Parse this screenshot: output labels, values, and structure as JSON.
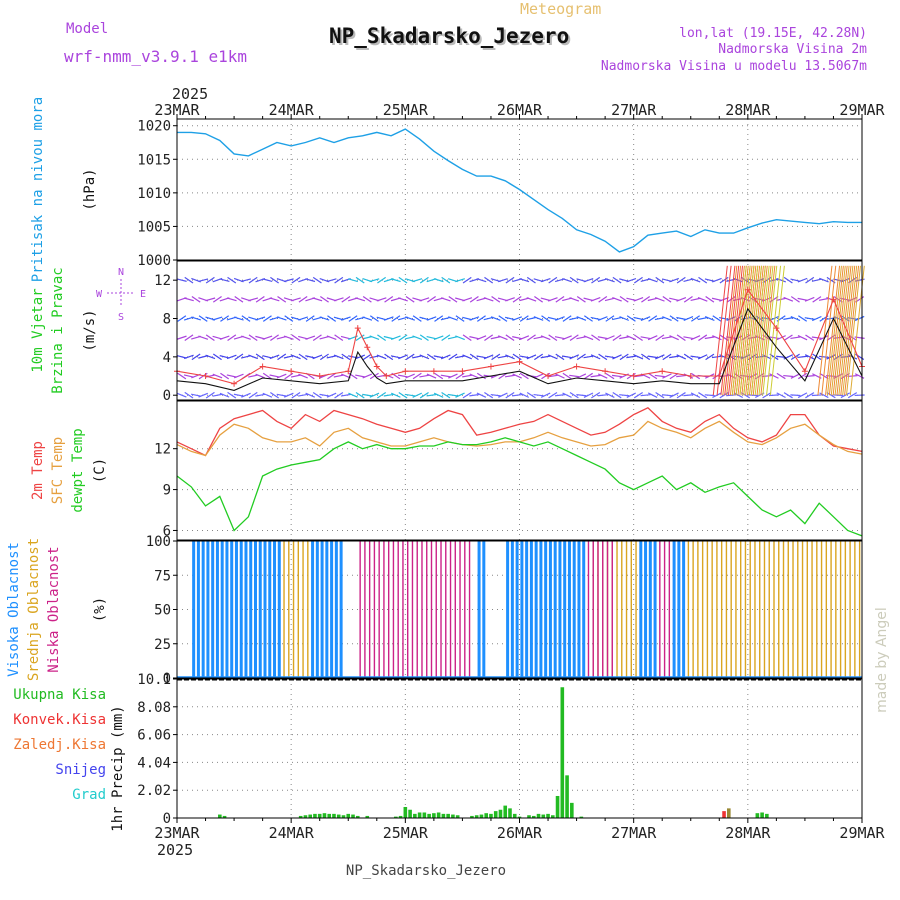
{
  "header": {
    "model_label": "Model",
    "model_name": "wrf-nmm_v3.9.1 e1km",
    "title": "NP_Skadarsko_Jezero",
    "subtitle": "Meteogram",
    "coords": "lon,lat (19.15E, 42.28N)",
    "elevation": "Nadmorska Visina 2m",
    "model_elevation": "Nadmorska Visina u modelu 13.5067m",
    "top_year": "2025",
    "bottom_year": "2025",
    "footer": "NP_Skadarsko_Jezero",
    "watermark": "made by Angel"
  },
  "colors": {
    "pressure": "#1ea0e6",
    "wind_label": "#22cc22",
    "temp2m": "#ee4444",
    "sfc": "#e6a040",
    "dew": "#22cc22",
    "cloud_high": "#1e90ff",
    "cloud_mid": "#daa520",
    "cloud_low": "#cc2288",
    "precip_total": "#22bb22",
    "precip_conv": "#ee3333",
    "precip_frz": "#ee7733",
    "snow": "#4444ee",
    "hail": "#22cccc",
    "purple": "#aa44dd"
  },
  "time_axis": {
    "labels": [
      "23MAR",
      "24MAR",
      "25MAR",
      "26MAR",
      "27MAR",
      "28MAR",
      "29MAR"
    ]
  },
  "chart_data": [
    {
      "type": "line",
      "id": "pressure",
      "ylabel": [
        "Pritisak na nivou mora",
        "(hPa)"
      ],
      "yticks": [
        1000,
        1005,
        1010,
        1015,
        1020
      ],
      "ylim": [
        1000,
        1021
      ],
      "x_unit": "hours since 23MAR 00",
      "series": [
        {
          "x": [
            0,
            3,
            6,
            9,
            12,
            15,
            18,
            21,
            24,
            27,
            30,
            33,
            36,
            39,
            42,
            45,
            48,
            51,
            54,
            57,
            60,
            63,
            66,
            69,
            72,
            75,
            78,
            81,
            84,
            87,
            90,
            93,
            96,
            99,
            102,
            105,
            108,
            111,
            114,
            117,
            120,
            123,
            126,
            129,
            132,
            135,
            138,
            141,
            144
          ],
          "values": [
            1019,
            1019,
            1018.8,
            1017.8,
            1015.8,
            1015.5,
            1016.5,
            1017.5,
            1017.0,
            1017.5,
            1018.2,
            1017.5,
            1018.2,
            1018.5,
            1019.0,
            1018.5,
            1019.5,
            1018.0,
            1016.2,
            1014.8,
            1013.5,
            1012.5,
            1012.5,
            1011.8,
            1010.5,
            1009.0,
            1007.5,
            1006.2,
            1004.5,
            1003.8,
            1002.8,
            1001.2,
            1002.0,
            1003.7,
            1004.0,
            1004.3,
            1003.5,
            1004.5,
            1004.0,
            1004.0,
            1004.8,
            1005.5,
            1006.0,
            1005.8,
            1005.6,
            1005.4,
            1005.7,
            1005.6,
            1005.6
          ]
        }
      ]
    },
    {
      "type": "line",
      "id": "wind",
      "ylabel": [
        "10m Vjetar",
        "Brzina i Pravac",
        "(m/s)"
      ],
      "compass": [
        "N",
        "E",
        "S",
        "W"
      ],
      "yticks": [
        0,
        4,
        8,
        12
      ],
      "ylim": [
        -0.5,
        14
      ],
      "x_unit": "hours since 23MAR 00",
      "series": [
        {
          "name": "10m wind speed",
          "x": [
            0,
            6,
            12,
            18,
            24,
            30,
            36,
            38,
            40,
            42,
            44,
            48,
            54,
            60,
            66,
            72,
            78,
            84,
            90,
            96,
            102,
            108,
            114,
            120,
            126,
            132,
            138,
            144
          ],
          "values": [
            1.5,
            1.2,
            0.5,
            1.8,
            1.5,
            1.2,
            1.5,
            4.5,
            3.0,
            1.8,
            1.2,
            1.5,
            1.5,
            1.5,
            2.0,
            2.5,
            1.2,
            1.8,
            1.5,
            1.2,
            1.5,
            1.2,
            1.2,
            9.0,
            5.0,
            1.5,
            8.0,
            2.0
          ]
        },
        {
          "name": "gust",
          "x": [
            0,
            6,
            12,
            18,
            24,
            30,
            36,
            38,
            40,
            42,
            44,
            48,
            54,
            60,
            66,
            72,
            78,
            84,
            90,
            96,
            102,
            108,
            114,
            120,
            126,
            132,
            138,
            144
          ],
          "values": [
            2.5,
            2.0,
            1.2,
            3.0,
            2.5,
            2.0,
            2.5,
            7.0,
            5.0,
            3.0,
            2.0,
            2.5,
            2.5,
            2.5,
            3.0,
            3.5,
            2.0,
            3.0,
            2.5,
            2.0,
            2.5,
            2.0,
            2.0,
            11.0,
            7.0,
            2.5,
            10.0,
            3.0
          ]
        }
      ]
    },
    {
      "type": "line",
      "id": "temperature",
      "ylabel": [
        "2m Temp",
        "SFC Temp",
        "dewpt Temp",
        "(C)"
      ],
      "yticks": [
        6,
        9,
        12
      ],
      "ylim": [
        5.3,
        15.5
      ],
      "x_unit": "hours since 23MAR 00",
      "series": [
        {
          "name": "2m Temp",
          "x": [
            0,
            3,
            6,
            9,
            12,
            15,
            18,
            21,
            24,
            27,
            30,
            33,
            36,
            39,
            42,
            45,
            48,
            51,
            54,
            57,
            60,
            63,
            66,
            69,
            72,
            75,
            78,
            81,
            84,
            87,
            90,
            93,
            96,
            99,
            102,
            105,
            108,
            111,
            114,
            117,
            120,
            123,
            126,
            129,
            132,
            135,
            138,
            141,
            144
          ],
          "values": [
            12.5,
            12.0,
            11.5,
            13.5,
            14.2,
            14.5,
            14.8,
            14.0,
            13.5,
            14.5,
            14.0,
            14.8,
            14.5,
            14.2,
            13.8,
            13.5,
            13.2,
            13.5,
            14.2,
            14.8,
            14.5,
            13.0,
            13.2,
            13.5,
            13.8,
            14.0,
            14.5,
            14.0,
            13.5,
            13.0,
            13.2,
            13.8,
            14.5,
            15.0,
            14.0,
            13.5,
            13.2,
            14.0,
            14.5,
            13.5,
            12.8,
            12.5,
            13.0,
            14.5,
            14.5,
            13.0,
            12.2,
            12.0,
            11.8
          ]
        },
        {
          "name": "SFC Temp",
          "x": [
            0,
            3,
            6,
            9,
            12,
            15,
            18,
            21,
            24,
            27,
            30,
            33,
            36,
            39,
            42,
            45,
            48,
            51,
            54,
            57,
            60,
            63,
            66,
            69,
            72,
            75,
            78,
            81,
            84,
            87,
            90,
            93,
            96,
            99,
            102,
            105,
            108,
            111,
            114,
            117,
            120,
            123,
            126,
            129,
            132,
            135,
            138,
            141,
            144
          ],
          "values": [
            12.3,
            11.8,
            11.5,
            13.0,
            13.8,
            13.5,
            12.8,
            12.5,
            12.5,
            12.8,
            12.2,
            13.2,
            13.5,
            12.8,
            12.5,
            12.2,
            12.2,
            12.5,
            12.8,
            12.5,
            12.3,
            12.2,
            12.3,
            12.5,
            12.5,
            12.8,
            13.2,
            12.8,
            12.5,
            12.2,
            12.3,
            12.8,
            13.0,
            14.0,
            13.5,
            13.2,
            12.8,
            13.5,
            14.0,
            13.2,
            12.5,
            12.3,
            12.8,
            13.5,
            13.8,
            13.0,
            12.3,
            11.8,
            11.6
          ]
        },
        {
          "name": "dewpt Temp",
          "x": [
            0,
            3,
            6,
            9,
            12,
            15,
            18,
            21,
            24,
            27,
            30,
            33,
            36,
            39,
            42,
            45,
            48,
            51,
            54,
            57,
            60,
            63,
            66,
            69,
            72,
            75,
            78,
            81,
            84,
            87,
            90,
            93,
            96,
            99,
            102,
            105,
            108,
            111,
            114,
            117,
            120,
            123,
            126,
            129,
            132,
            135,
            138,
            141,
            144
          ],
          "values": [
            10.0,
            9.2,
            7.8,
            8.5,
            6.0,
            7.0,
            10.0,
            10.5,
            10.8,
            11.0,
            11.2,
            12.0,
            12.5,
            12.0,
            12.3,
            12.0,
            12.0,
            12.2,
            12.2,
            12.5,
            12.3,
            12.3,
            12.5,
            12.8,
            12.5,
            12.2,
            12.5,
            12.0,
            11.5,
            11.0,
            10.5,
            9.5,
            9.0,
            9.5,
            10.0,
            9.0,
            9.5,
            8.8,
            9.2,
            9.5,
            8.5,
            7.5,
            7.0,
            7.5,
            6.5,
            8.0,
            7.0,
            6.0,
            5.6
          ]
        }
      ]
    },
    {
      "type": "bar",
      "id": "clouds",
      "ylabel": [
        "Visoka Oblacnost",
        "Srednja Oblacnost",
        "Niska Oblacnost",
        "(%)"
      ],
      "yticks": [
        0,
        25,
        50,
        75,
        100
      ],
      "ylim": [
        0,
        100
      ],
      "series": [
        {
          "name": "Visoka Oblacnost",
          "segments_hours": [
            [
              3,
              22
            ],
            [
              28,
              35
            ],
            [
              63,
              65
            ],
            [
              69,
              86
            ],
            [
              97,
              101
            ],
            [
              104,
              107
            ]
          ],
          "value": 100
        },
        {
          "name": "Srednja Oblacnost",
          "segments_hours": [
            [
              22,
              28
            ],
            [
              87,
              97
            ],
            [
              107,
              144
            ]
          ],
          "value": 100
        },
        {
          "name": "Niska Oblacnost",
          "segments_hours": [
            [
              38,
              62
            ],
            [
              86,
              92
            ],
            [
              101,
              104
            ]
          ],
          "value": 100
        }
      ]
    },
    {
      "type": "bar",
      "id": "precip",
      "ylabel": [
        "1hr Precip (mm)"
      ],
      "legend": [
        "Ukupna Kisa",
        "Konvek.Kisa",
        "Zaledj.Kisa",
        "Snijeg",
        "Grad"
      ],
      "yticks": [
        0,
        2.02,
        4.04,
        6.06,
        8.08,
        10.1
      ],
      "ylim": [
        0,
        10.1
      ],
      "x_unit": "hours since 23MAR 00",
      "bars": [
        {
          "x": 9,
          "value": 0.25,
          "kind": "total"
        },
        {
          "x": 10,
          "value": 0.15,
          "kind": "total"
        },
        {
          "x": 26,
          "value": 0.15,
          "kind": "total"
        },
        {
          "x": 27,
          "value": 0.2,
          "kind": "total"
        },
        {
          "x": 28,
          "value": 0.25,
          "kind": "total"
        },
        {
          "x": 29,
          "value": 0.3,
          "kind": "total"
        },
        {
          "x": 30,
          "value": 0.3,
          "kind": "total"
        },
        {
          "x": 31,
          "value": 0.35,
          "kind": "total"
        },
        {
          "x": 32,
          "value": 0.3,
          "kind": "total"
        },
        {
          "x": 33,
          "value": 0.3,
          "kind": "total"
        },
        {
          "x": 34,
          "value": 0.25,
          "kind": "total"
        },
        {
          "x": 35,
          "value": 0.2,
          "kind": "total"
        },
        {
          "x": 36,
          "value": 0.3,
          "kind": "total"
        },
        {
          "x": 37,
          "value": 0.25,
          "kind": "total"
        },
        {
          "x": 38,
          "value": 0.15,
          "kind": "total"
        },
        {
          "x": 40,
          "value": 0.15,
          "kind": "total"
        },
        {
          "x": 46,
          "value": 0.1,
          "kind": "total"
        },
        {
          "x": 47,
          "value": 0.15,
          "kind": "total"
        },
        {
          "x": 48,
          "value": 0.8,
          "kind": "total"
        },
        {
          "x": 49,
          "value": 0.6,
          "kind": "total"
        },
        {
          "x": 50,
          "value": 0.3,
          "kind": "total"
        },
        {
          "x": 51,
          "value": 0.4,
          "kind": "total"
        },
        {
          "x": 52,
          "value": 0.4,
          "kind": "total"
        },
        {
          "x": 53,
          "value": 0.3,
          "kind": "total"
        },
        {
          "x": 54,
          "value": 0.35,
          "kind": "total"
        },
        {
          "x": 55,
          "value": 0.4,
          "kind": "total"
        },
        {
          "x": 56,
          "value": 0.3,
          "kind": "total"
        },
        {
          "x": 57,
          "value": 0.3,
          "kind": "total"
        },
        {
          "x": 58,
          "value": 0.25,
          "kind": "total"
        },
        {
          "x": 59,
          "value": 0.2,
          "kind": "total"
        },
        {
          "x": 62,
          "value": 0.15,
          "kind": "total"
        },
        {
          "x": 63,
          "value": 0.2,
          "kind": "total"
        },
        {
          "x": 64,
          "value": 0.25,
          "kind": "total"
        },
        {
          "x": 65,
          "value": 0.35,
          "kind": "total"
        },
        {
          "x": 66,
          "value": 0.3,
          "kind": "total"
        },
        {
          "x": 67,
          "value": 0.5,
          "kind": "total"
        },
        {
          "x": 68,
          "value": 0.6,
          "kind": "total"
        },
        {
          "x": 69,
          "value": 0.9,
          "kind": "total"
        },
        {
          "x": 70,
          "value": 0.7,
          "kind": "total"
        },
        {
          "x": 71,
          "value": 0.3,
          "kind": "total"
        },
        {
          "x": 72,
          "value": 0.1,
          "kind": "total"
        },
        {
          "x": 74,
          "value": 0.2,
          "kind": "total"
        },
        {
          "x": 75,
          "value": 0.15,
          "kind": "total"
        },
        {
          "x": 76,
          "value": 0.3,
          "kind": "total"
        },
        {
          "x": 77,
          "value": 0.25,
          "kind": "total"
        },
        {
          "x": 78,
          "value": 0.3,
          "kind": "total"
        },
        {
          "x": 79,
          "value": 0.2,
          "kind": "total"
        },
        {
          "x": 80,
          "value": 1.6,
          "kind": "total"
        },
        {
          "x": 81,
          "value": 9.5,
          "kind": "total"
        },
        {
          "x": 82,
          "value": 3.1,
          "kind": "total"
        },
        {
          "x": 83,
          "value": 1.1,
          "kind": "total"
        },
        {
          "x": 85,
          "value": 0.1,
          "kind": "total"
        },
        {
          "x": 115,
          "value": 0.5,
          "kind": "conv"
        },
        {
          "x": 116,
          "value": 0.7,
          "kind": "frz"
        },
        {
          "x": 122,
          "value": 0.35,
          "kind": "total"
        },
        {
          "x": 123,
          "value": 0.4,
          "kind": "total"
        },
        {
          "x": 124,
          "value": 0.3,
          "kind": "total"
        }
      ]
    }
  ]
}
